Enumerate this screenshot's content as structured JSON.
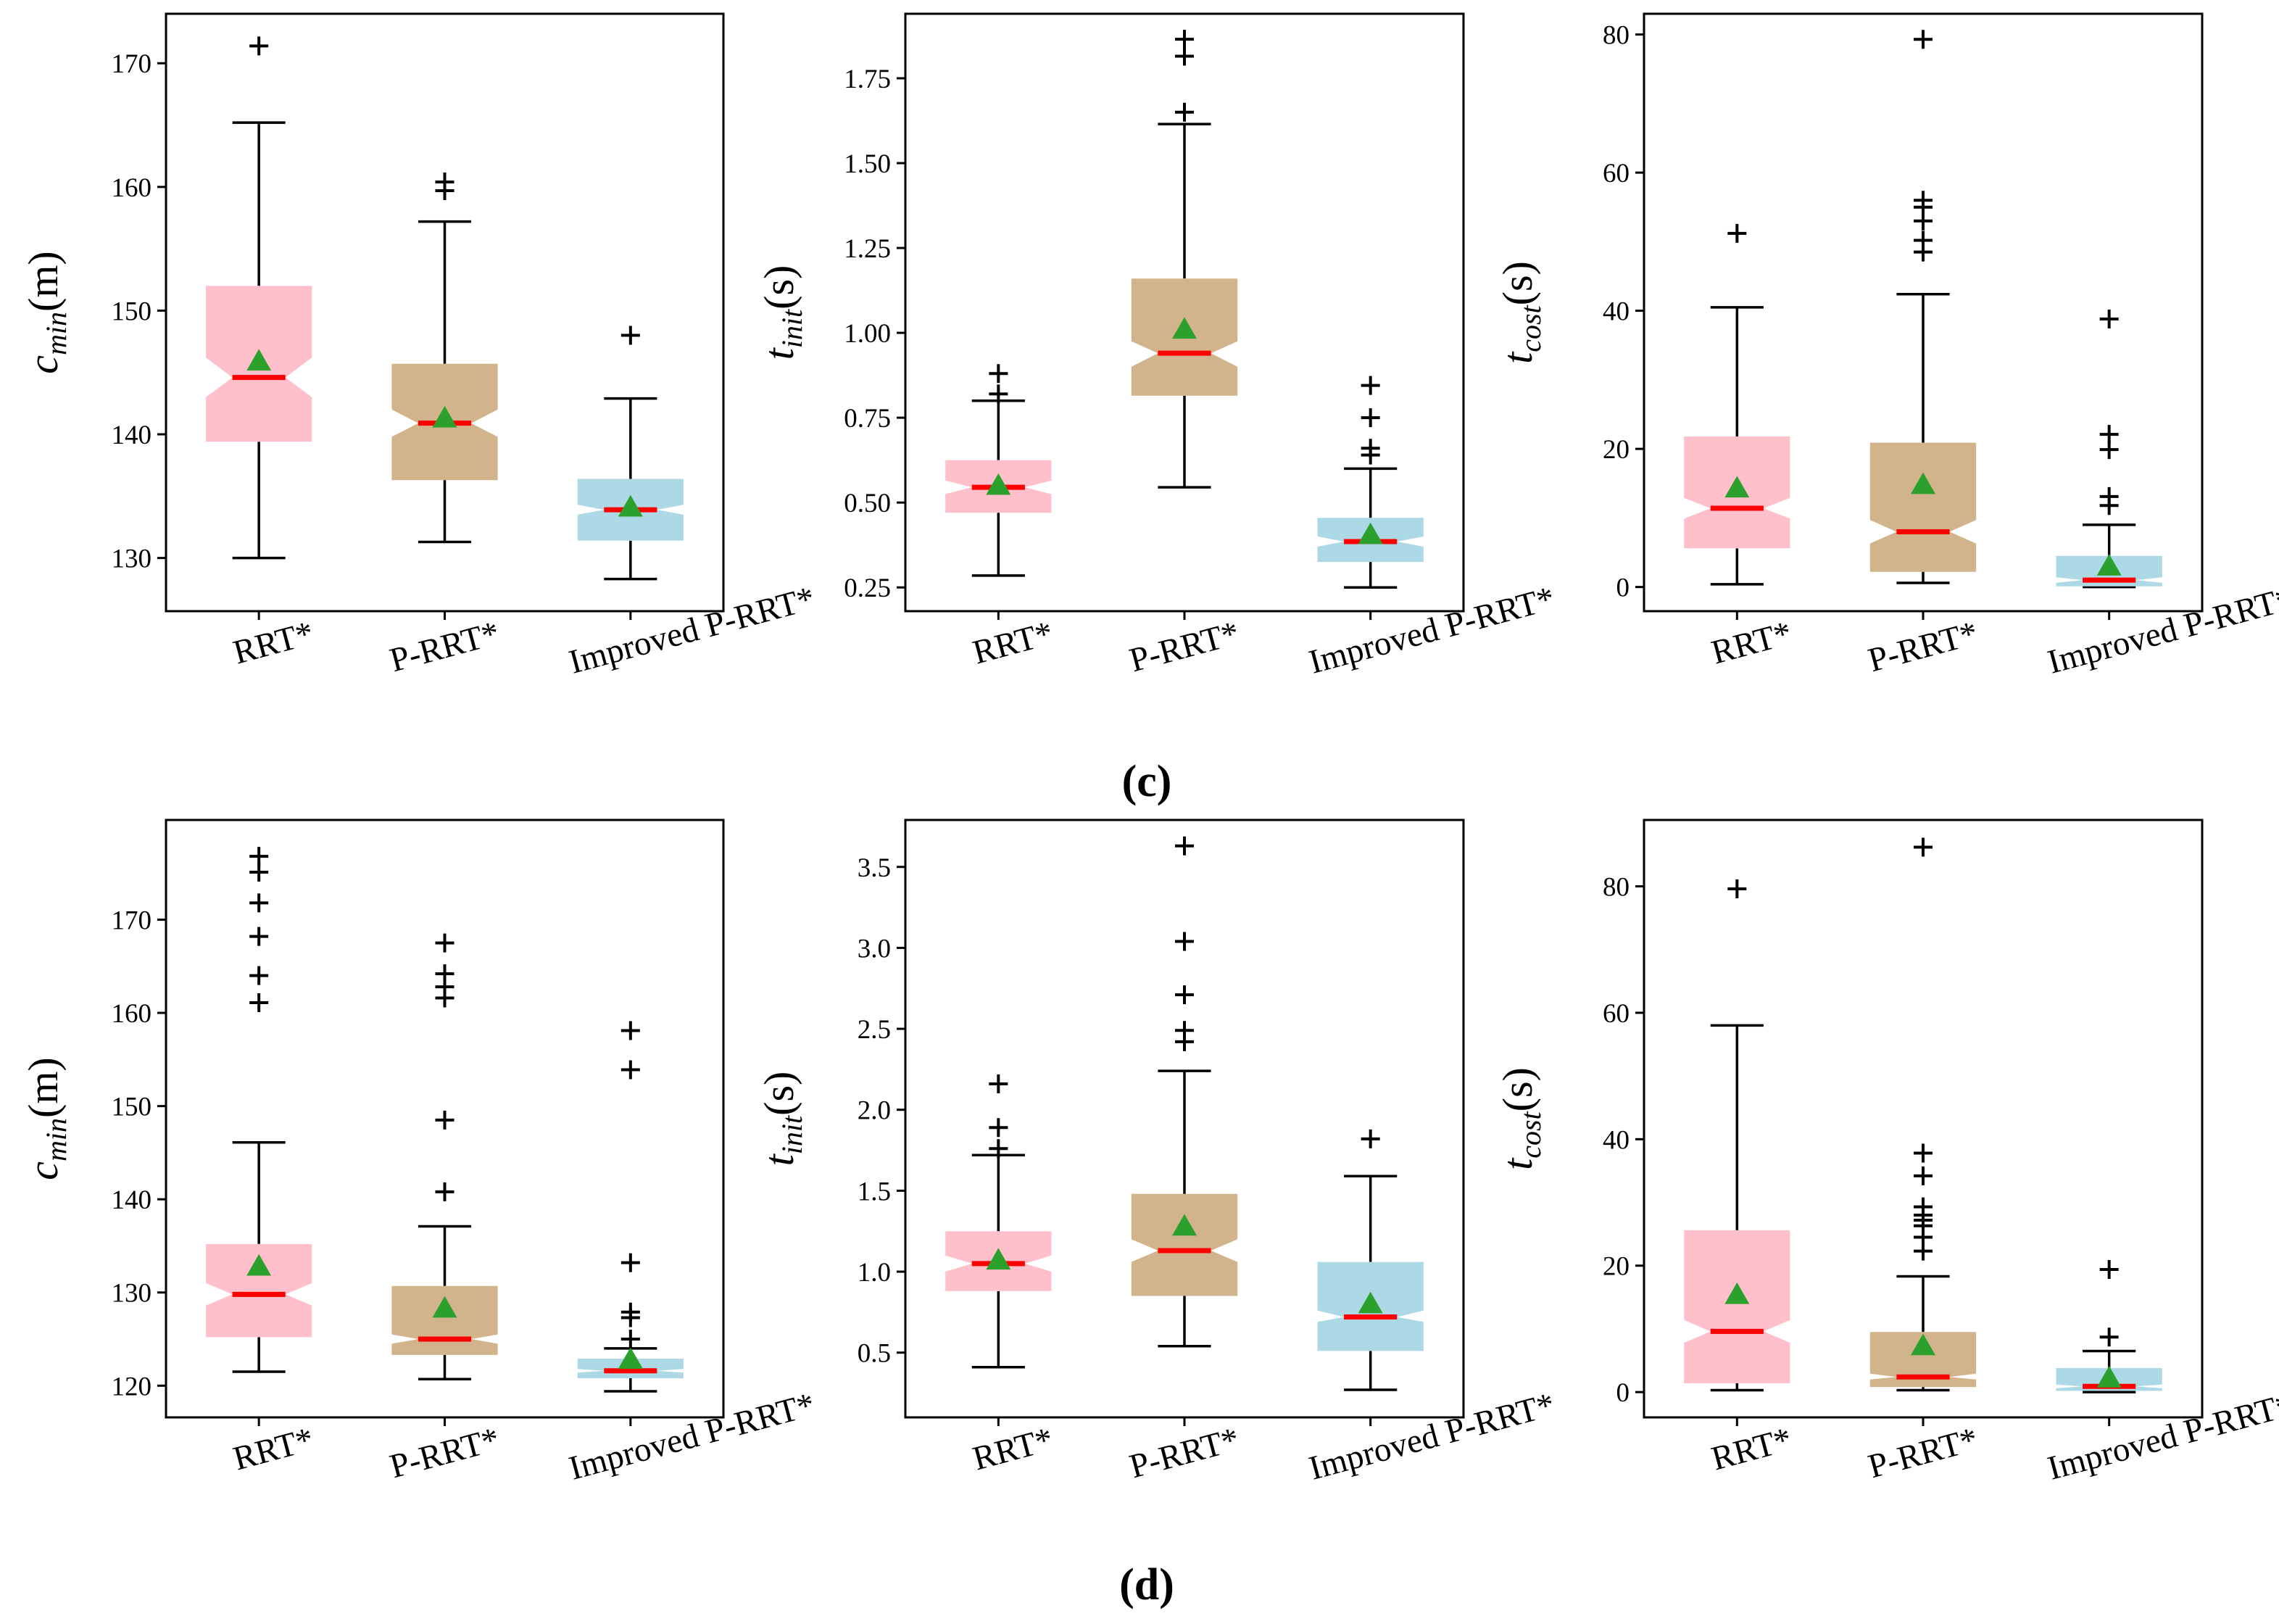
{
  "colors": {
    "rrt": "#ffc0cb",
    "prrt": "#d2b48c",
    "improved": "#add8e6",
    "median": "#ff0000",
    "mean": "#2ca02c",
    "line": "#000000"
  },
  "panel_labels": {
    "c": "(c)",
    "d": "(d)"
  },
  "ylabel_parts": {
    "cmin": {
      "main": "c",
      "sub": "min",
      "unit": "(m)"
    },
    "tinit": {
      "main": "t",
      "sub": "init",
      "unit": "(s)"
    },
    "tcost": {
      "main": "t",
      "sub": "cost",
      "unit": "(s)"
    }
  },
  "chart_data": [
    {
      "id": "c-cmin",
      "type": "box",
      "panel": "(c)",
      "ylabel": "c_min(m)",
      "categories": [
        "RRT*",
        "P-RRT*",
        "Improved P-RRT*"
      ],
      "ylim": [
        125.7,
        174
      ],
      "yticks": [
        130,
        140,
        150,
        160,
        170
      ],
      "yticklabels": [
        "130",
        "140",
        "150",
        "160",
        "170"
      ],
      "boxes": [
        {
          "q1": 139.4,
          "median": 144.6,
          "q3": 152.0,
          "whislo": 130.0,
          "whishi": 165.2,
          "mean": 145.9,
          "notch": [
            143.0,
            146.2
          ],
          "fliers": [
            171.4
          ]
        },
        {
          "q1": 136.3,
          "median": 140.9,
          "q3": 145.7,
          "whislo": 131.3,
          "whishi": 157.2,
          "mean": 141.3,
          "notch": [
            139.8,
            142.0
          ],
          "fliers": [
            159.7,
            160.4
          ]
        },
        {
          "q1": 131.4,
          "median": 133.9,
          "q3": 136.4,
          "whislo": 128.3,
          "whishi": 142.9,
          "mean": 134.1,
          "notch": [
            133.5,
            134.3
          ],
          "fliers": [
            148.0
          ]
        }
      ]
    },
    {
      "id": "c-tinit",
      "type": "box",
      "panel": "(c)",
      "ylabel": "t_init(s)",
      "categories": [
        "RRT*",
        "P-RRT*",
        "Improved P-RRT*"
      ],
      "ylim": [
        0.18,
        1.94
      ],
      "yticks": [
        0.25,
        0.5,
        0.75,
        1.0,
        1.25,
        1.5,
        1.75
      ],
      "yticklabels": [
        "0.25",
        "0.50",
        "0.75",
        "1.00",
        "1.25",
        "1.50",
        "1.75"
      ],
      "boxes": [
        {
          "q1": 0.47,
          "median": 0.545,
          "q3": 0.625,
          "whislo": 0.285,
          "whishi": 0.8,
          "mean": 0.55,
          "notch": [
            0.525,
            0.565
          ],
          "fliers": [
            0.82,
            0.88
          ]
        },
        {
          "q1": 0.815,
          "median": 0.94,
          "q3": 1.16,
          "whislo": 0.545,
          "whishi": 1.615,
          "mean": 1.01,
          "notch": [
            0.9,
            0.975
          ],
          "fliers": [
            1.65,
            1.815,
            1.865
          ]
        },
        {
          "q1": 0.325,
          "median": 0.385,
          "q3": 0.455,
          "whislo": 0.25,
          "whishi": 0.6,
          "mean": 0.405,
          "notch": [
            0.37,
            0.4
          ],
          "fliers": [
            0.64,
            0.66,
            0.75,
            0.845
          ]
        }
      ]
    },
    {
      "id": "c-tcost",
      "type": "box",
      "panel": "(c)",
      "ylabel": "t_cost(s)",
      "categories": [
        "RRT*",
        "P-RRT*",
        "Improved P-RRT*"
      ],
      "ylim": [
        -3.5,
        83
      ],
      "yticks": [
        0,
        20,
        40,
        60,
        80
      ],
      "yticklabels": [
        "0",
        "20",
        "40",
        "60",
        "80"
      ],
      "boxes": [
        {
          "q1": 5.6,
          "median": 11.4,
          "q3": 21.8,
          "whislo": 0.4,
          "whishi": 40.5,
          "mean": 14.3,
          "notch": [
            9.9,
            12.9
          ],
          "fliers": [
            51.2
          ]
        },
        {
          "q1": 2.2,
          "median": 8.0,
          "q3": 20.9,
          "whislo": 0.6,
          "whishi": 42.4,
          "mean": 14.8,
          "notch": [
            6.3,
            9.7
          ],
          "fliers": [
            48.5,
            50.2,
            53.0,
            55.0,
            56.0,
            79.3
          ]
        },
        {
          "q1": 0.1,
          "median": 1.0,
          "q3": 4.5,
          "whislo": 0.0,
          "whishi": 9.0,
          "mean": 3.0,
          "notch": [
            0.6,
            1.4
          ],
          "fliers": [
            11.8,
            13.1,
            19.9,
            22.1,
            38.8
          ]
        }
      ]
    },
    {
      "id": "d-cmin",
      "type": "box",
      "panel": "(d)",
      "ylabel": "c_min(m)",
      "categories": [
        "RRT*",
        "P-RRT*",
        "Improved P-RRT*"
      ],
      "ylim": [
        116.6,
        180.7
      ],
      "yticks": [
        120,
        130,
        140,
        150,
        160,
        170
      ],
      "yticklabels": [
        "120",
        "130",
        "140",
        "150",
        "160",
        "170"
      ],
      "boxes": [
        {
          "q1": 125.2,
          "median": 129.8,
          "q3": 135.2,
          "whislo": 121.5,
          "whishi": 146.1,
          "mean": 132.8,
          "notch": [
            128.6,
            131.0
          ],
          "fliers": [
            161.1,
            164.0,
            168.2,
            171.8,
            175.1,
            176.8
          ]
        },
        {
          "q1": 123.3,
          "median": 125.0,
          "q3": 130.7,
          "whislo": 120.7,
          "whishi": 137.1,
          "mean": 128.3,
          "notch": [
            124.5,
            125.5
          ],
          "fliers": [
            140.8,
            148.5,
            161.6,
            162.8,
            164.2,
            167.5
          ]
        },
        {
          "q1": 120.8,
          "median": 121.6,
          "q3": 122.9,
          "whislo": 119.4,
          "whishi": 124.0,
          "mean": 122.8,
          "notch": [
            121.4,
            121.8
          ],
          "fliers": [
            125.0,
            127.3,
            127.9,
            133.2,
            153.9,
            158.1
          ]
        }
      ]
    },
    {
      "id": "d-tinit",
      "type": "box",
      "panel": "(d)",
      "ylabel": "t_init(s)",
      "categories": [
        "RRT*",
        "P-RRT*",
        "Improved P-RRT*"
      ],
      "ylim": [
        0.1,
        3.79
      ],
      "yticks": [
        0.5,
        1.0,
        1.5,
        2.0,
        2.5,
        3.0,
        3.5
      ],
      "yticklabels": [
        "0.5",
        "1.0",
        "1.5",
        "2.0",
        "2.5",
        "3.0",
        "3.5"
      ],
      "boxes": [
        {
          "q1": 0.88,
          "median": 1.05,
          "q3": 1.25,
          "whislo": 0.41,
          "whishi": 1.72,
          "mean": 1.07,
          "notch": [
            1.0,
            1.1
          ],
          "fliers": [
            1.76,
            1.89,
            2.16
          ]
        },
        {
          "q1": 0.85,
          "median": 1.13,
          "q3": 1.48,
          "whislo": 0.54,
          "whishi": 2.24,
          "mean": 1.28,
          "notch": [
            1.06,
            1.2
          ],
          "fliers": [
            2.42,
            2.49,
            2.71,
            3.04,
            3.63
          ]
        },
        {
          "q1": 0.51,
          "median": 0.72,
          "q3": 1.06,
          "whislo": 0.27,
          "whishi": 1.59,
          "mean": 0.8,
          "notch": [
            0.69,
            0.76
          ],
          "fliers": [
            1.82
          ]
        }
      ]
    },
    {
      "id": "d-tcost",
      "type": "box",
      "panel": "(d)",
      "ylabel": "t_cost(s)",
      "categories": [
        "RRT*",
        "P-RRT*",
        "Improved P-RRT*"
      ],
      "ylim": [
        -4,
        90.5
      ],
      "yticks": [
        0,
        20,
        40,
        60,
        80
      ],
      "yticklabels": [
        "0",
        "20",
        "40",
        "60",
        "80"
      ],
      "boxes": [
        {
          "q1": 1.4,
          "median": 9.6,
          "q3": 25.6,
          "whislo": 0.3,
          "whishi": 58.0,
          "mean": 15.4,
          "notch": [
            7.8,
            11.4
          ],
          "fliers": [
            79.6
          ]
        },
        {
          "q1": 0.8,
          "median": 2.4,
          "q3": 9.5,
          "whislo": 0.3,
          "whishi": 18.3,
          "mean": 7.3,
          "notch": [
            2.0,
            2.9
          ],
          "fliers": [
            22.3,
            24.5,
            26.3,
            27.2,
            28.0,
            29.3,
            34.2,
            37.8,
            86.2
          ]
        },
        {
          "q1": 0.2,
          "median": 0.9,
          "q3": 3.8,
          "whislo": 0.0,
          "whishi": 6.5,
          "mean": 2.2,
          "notch": [
            0.6,
            1.2
          ],
          "fliers": [
            8.7,
            19.4
          ]
        }
      ]
    }
  ]
}
